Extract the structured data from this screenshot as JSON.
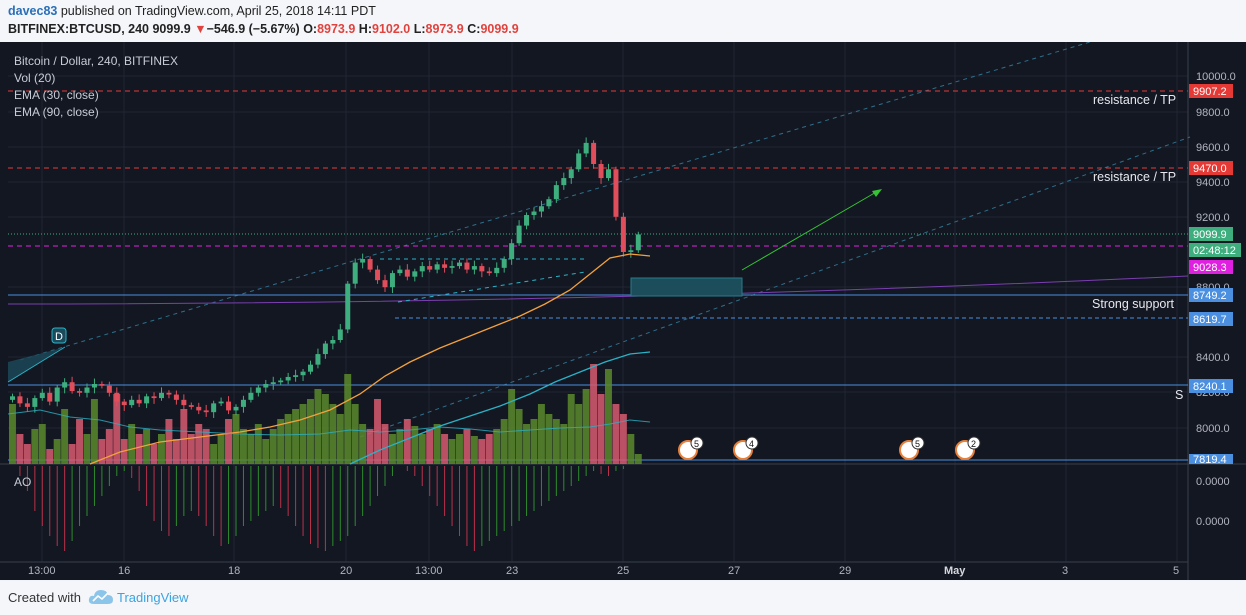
{
  "header": {
    "author": "davec83",
    "published": "published on TradingView.com, April 25, 2018 14:11 PDT",
    "symbol": "BITFINEX:BTCUSD, 240",
    "last": "9099.9",
    "arrow": "▼",
    "change": "−546.9 (−5.67%)",
    "o_label": "O:",
    "o": "8973.9",
    "h_label": "H:",
    "h": "9102.0",
    "l_label": "L:",
    "l": "8973.9",
    "c_label": "C:",
    "c": "9099.9"
  },
  "legend": {
    "title": "Bitcoin / Dollar, 240, BITFINEX",
    "vol": "Vol (20)",
    "ema30": "EMA (30, close)",
    "ema90": "EMA (90, close)"
  },
  "price_axis": [
    "10000.0",
    "9800.0",
    "9600.0",
    "9400.0",
    "9200.0",
    "8800.0",
    "8400.0",
    "8200.0",
    "8000.0"
  ],
  "price_tags": {
    "r1": "9907.2",
    "r2": "9470.0",
    "last": "9099.9",
    "countdown": "02:48:12",
    "ema": "9028.3",
    "support": "8749.2",
    "s2": "8619.7",
    "s3": "8240.1",
    "s4": "7819.4"
  },
  "annotations": {
    "res1": "resistance / TP",
    "res2": "resistance / TP",
    "support": "Strong support",
    "d_marker": "D",
    "s_marker": "S",
    "events": [
      "5",
      "4",
      "5",
      "2"
    ]
  },
  "ao": {
    "label": "AO",
    "ticks": [
      "0.0000",
      "0.0000"
    ]
  },
  "time_axis": [
    "13:00",
    "16",
    "18",
    "20",
    "13:00",
    "23",
    "25",
    "27",
    "29",
    "May",
    "3",
    "5"
  ],
  "footer": {
    "created": "Created with",
    "brand": "TradingView"
  },
  "colors": {
    "bg": "#131722",
    "up": "#3fae7e",
    "down": "#e04d5b",
    "ema30": "#f3a13d",
    "ema90": "#2ab2c6",
    "resist": "#e53935",
    "ema_tag": "#e020e0",
    "blue_tag": "#4a8fe0",
    "vol_up": "#5a8a2c",
    "vol_down": "#d85a6e"
  }
}
